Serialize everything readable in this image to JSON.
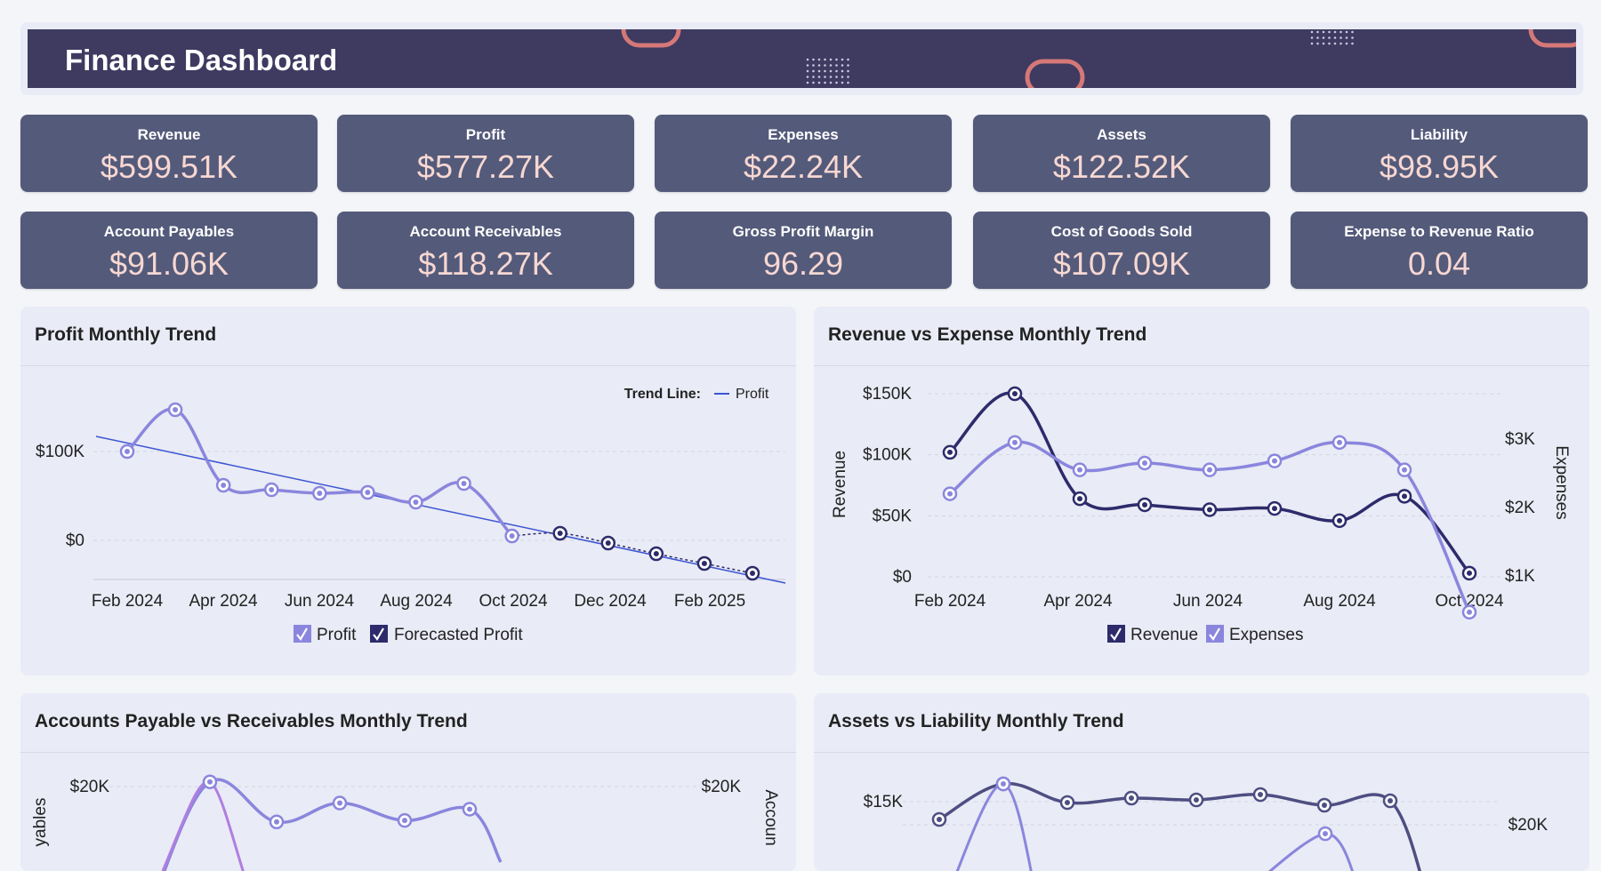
{
  "header": {
    "title": "Finance Dashboard"
  },
  "kpis": [
    {
      "label": "Revenue",
      "value": "$599.51K"
    },
    {
      "label": "Profit",
      "value": "$577.27K"
    },
    {
      "label": "Expenses",
      "value": "$22.24K"
    },
    {
      "label": "Assets",
      "value": "$122.52K"
    },
    {
      "label": "Liability",
      "value": "$98.95K"
    },
    {
      "label": "Account Payables",
      "value": "$91.06K"
    },
    {
      "label": "Account Receivables",
      "value": "$118.27K"
    },
    {
      "label": "Gross Profit Margin",
      "value": "96.29"
    },
    {
      "label": "Cost of Goods Sold",
      "value": "$107.09K"
    },
    {
      "label": "Expense to Revenue Ratio",
      "value": "0.04"
    }
  ],
  "colors": {
    "header_bg": "#3e3a60",
    "kpi_bg": "#545a7a",
    "kpi_value": "#f7d7d2",
    "series_light": "#8a86dd",
    "series_dark": "#2d2b6b",
    "trend_line": "#3b55d3",
    "series_pink": "#b07ee0",
    "series_slate": "#4e4e82"
  },
  "cards": {
    "profit": {
      "title": "Profit Monthly Trend",
      "trend_label": "Trend Line:",
      "trend_series": "Profit",
      "legend": [
        "Profit",
        "Forecasted Profit"
      ]
    },
    "revexp": {
      "title": "Revenue vs Expense Monthly Trend",
      "left_axis": "Revenue",
      "right_axis": "Expenses",
      "legend": [
        "Revenue",
        "Expenses"
      ]
    },
    "payrec": {
      "title": "Accounts Payable vs Receivables Monthly Trend",
      "left_axis_partial": "yables",
      "right_axis_partial": "Accoun"
    },
    "assetliab": {
      "title": "Assets vs Liability Monthly Trend"
    }
  },
  "chart_data": [
    {
      "type": "line",
      "title": "Profit Monthly Trend",
      "x_ticks": [
        "Feb 2024",
        "Apr 2024",
        "Jun 2024",
        "Aug 2024",
        "Oct 2024",
        "Dec 2024",
        "Feb 2025"
      ],
      "y_ticks": [
        "$100K",
        "$0"
      ],
      "ylim": [
        -50000,
        180000
      ],
      "trend_line": {
        "name": "Profit",
        "start": 117000,
        "end": -48000
      },
      "series": [
        {
          "name": "Profit",
          "x": [
            "2024-02",
            "2024-03",
            "2024-04",
            "2024-05",
            "2024-06",
            "2024-07",
            "2024-08",
            "2024-09",
            "2024-10"
          ],
          "y": [
            100000,
            147000,
            62000,
            57000,
            53000,
            54000,
            43000,
            64000,
            5000
          ]
        },
        {
          "name": "Forecasted Profit",
          "x": [
            "2024-11",
            "2024-12",
            "2025-01",
            "2025-02",
            "2025-03"
          ],
          "y": [
            8000,
            -3000,
            -15000,
            -26000,
            -37000
          ]
        }
      ]
    },
    {
      "type": "line",
      "title": "Revenue vs Expense Monthly Trend",
      "x_ticks": [
        "Feb 2024",
        "Apr 2024",
        "Jun 2024",
        "Aug 2024",
        "Oct 2024"
      ],
      "y_ticks_left": [
        "$150K",
        "$100K",
        "$50K",
        "$0"
      ],
      "y_ticks_right": [
        "$3K",
        "$2K",
        "$1K"
      ],
      "ylim_left": [
        0,
        150000
      ],
      "ylim_right": [
        400,
        3000
      ],
      "xlabel": "",
      "ylabel": "Revenue",
      "ylabel_right": "Expenses",
      "series": [
        {
          "name": "Revenue",
          "x": [
            "2024-02",
            "2024-03",
            "2024-04",
            "2024-05",
            "2024-06",
            "2024-07",
            "2024-08",
            "2024-09",
            "2024-10"
          ],
          "y": [
            102000,
            150000,
            64000,
            59000,
            55000,
            56000,
            46000,
            66000,
            3000
          ]
        },
        {
          "name": "Expenses",
          "x": [
            "2024-02",
            "2024-03",
            "2024-04",
            "2024-05",
            "2024-06",
            "2024-07",
            "2024-08",
            "2024-09",
            "2024-10"
          ],
          "y": [
            2200,
            2950,
            2550,
            2650,
            2550,
            2680,
            2950,
            2550,
            470
          ]
        }
      ]
    },
    {
      "type": "line",
      "title": "Accounts Payable vs Receivables Monthly Trend",
      "y_ticks_left": [
        "$20K"
      ],
      "y_ticks_right": [
        "$20K"
      ],
      "series": [
        {
          "name": "",
          "y": [
            21000,
            12500,
            16500,
            12800,
            15200
          ]
        },
        {
          "name": "",
          "y": [
            21000
          ]
        }
      ]
    },
    {
      "type": "line",
      "title": "Assets vs Liability Monthly Trend",
      "y_ticks_left": [
        "$15K"
      ],
      "y_ticks_right": [
        "$20K"
      ],
      "series": [
        {
          "name": "",
          "y": [
            13000,
            17000,
            14900,
            15400,
            15200,
            15800,
            14600,
            15100
          ]
        },
        {
          "name": "",
          "y": [
            17200,
            10700
          ]
        }
      ]
    }
  ]
}
